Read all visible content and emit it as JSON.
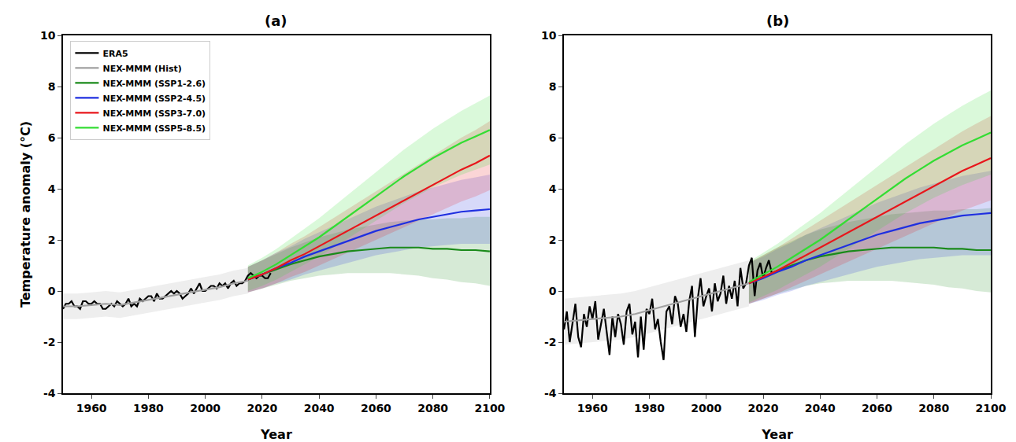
{
  "chart_data": [
    {
      "type": "line",
      "title": "(a)",
      "x_label": "Year",
      "y_label": "Temperature anomaly (°C)",
      "xlim": [
        1950,
        2100
      ],
      "xticks": [
        1960,
        1980,
        2000,
        2020,
        2040,
        2060,
        2080,
        2100
      ],
      "ylim": [
        -4,
        10
      ],
      "yticks": [
        -4,
        -2,
        0,
        2,
        4,
        6,
        8,
        10
      ],
      "legend": "upper left",
      "series": [
        {
          "name": "ERA5",
          "color": "#000000",
          "x": [
            1950,
            1951,
            1952,
            1953,
            1954,
            1955,
            1956,
            1957,
            1958,
            1959,
            1960,
            1961,
            1962,
            1963,
            1964,
            1965,
            1966,
            1967,
            1968,
            1969,
            1970,
            1971,
            1972,
            1973,
            1974,
            1975,
            1976,
            1977,
            1978,
            1979,
            1980,
            1981,
            1982,
            1983,
            1984,
            1985,
            1986,
            1987,
            1988,
            1989,
            1990,
            1991,
            1992,
            1993,
            1994,
            1995,
            1996,
            1997,
            1998,
            1999,
            2000,
            2001,
            2002,
            2003,
            2004,
            2005,
            2006,
            2007,
            2008,
            2009,
            2010,
            2011,
            2012,
            2013,
            2014,
            2015,
            2016,
            2017,
            2018,
            2019,
            2020,
            2021,
            2022,
            2023
          ],
          "values": [
            -0.7,
            -0.5,
            -0.5,
            -0.4,
            -0.6,
            -0.6,
            -0.7,
            -0.4,
            -0.4,
            -0.5,
            -0.5,
            -0.4,
            -0.5,
            -0.5,
            -0.7,
            -0.7,
            -0.6,
            -0.5,
            -0.6,
            -0.4,
            -0.5,
            -0.6,
            -0.5,
            -0.3,
            -0.6,
            -0.5,
            -0.6,
            -0.3,
            -0.4,
            -0.3,
            -0.2,
            -0.2,
            -0.4,
            -0.1,
            -0.3,
            -0.3,
            -0.2,
            -0.1,
            0.0,
            -0.1,
            0.0,
            -0.1,
            -0.3,
            -0.2,
            -0.1,
            0.1,
            -0.1,
            0.1,
            0.3,
            0.0,
            0.0,
            0.1,
            0.2,
            0.2,
            0.1,
            0.3,
            0.2,
            0.3,
            0.1,
            0.3,
            0.4,
            0.2,
            0.3,
            0.3,
            0.4,
            0.6,
            0.7,
            0.6,
            0.5,
            0.6,
            0.6,
            0.5,
            0.5,
            0.7
          ]
        },
        {
          "name": "NEX-MMM (Hist)",
          "color": "#a0a0a0",
          "x": [
            1950,
            1955,
            1960,
            1965,
            1970,
            1975,
            1980,
            1985,
            1990,
            1995,
            2000,
            2005,
            2010,
            2015
          ],
          "values": [
            -0.6,
            -0.6,
            -0.55,
            -0.5,
            -0.55,
            -0.45,
            -0.35,
            -0.25,
            -0.15,
            -0.05,
            0.05,
            0.15,
            0.3,
            0.4
          ],
          "spread": [
            0.5,
            0.5,
            0.5,
            0.5,
            0.5,
            0.5,
            0.5,
            0.5,
            0.5,
            0.5,
            0.5,
            0.5,
            0.5,
            0.5
          ]
        },
        {
          "name": "NEX-MMM (SSP1-2.6)",
          "color": "#1a8a1a",
          "x": [
            2015,
            2020,
            2025,
            2030,
            2035,
            2040,
            2045,
            2050,
            2055,
            2060,
            2065,
            2070,
            2075,
            2080,
            2085,
            2090,
            2095,
            2100
          ],
          "values": [
            0.45,
            0.65,
            0.85,
            1.05,
            1.2,
            1.35,
            1.45,
            1.55,
            1.6,
            1.65,
            1.7,
            1.7,
            1.7,
            1.65,
            1.65,
            1.6,
            1.6,
            1.55
          ],
          "spread": [
            0.5,
            0.55,
            0.6,
            0.65,
            0.7,
            0.75,
            0.8,
            0.85,
            0.9,
            0.95,
            1.0,
            1.05,
            1.1,
            1.15,
            1.2,
            1.25,
            1.3,
            1.35
          ]
        },
        {
          "name": "NEX-MMM (SSP2-4.5)",
          "color": "#1f2fe0",
          "x": [
            2015,
            2020,
            2025,
            2030,
            2035,
            2040,
            2045,
            2050,
            2055,
            2060,
            2065,
            2070,
            2075,
            2080,
            2085,
            2090,
            2095,
            2100
          ],
          "values": [
            0.45,
            0.65,
            0.9,
            1.1,
            1.35,
            1.55,
            1.75,
            1.95,
            2.15,
            2.35,
            2.5,
            2.65,
            2.8,
            2.9,
            3.0,
            3.1,
            3.15,
            3.2
          ],
          "spread": [
            0.5,
            0.55,
            0.6,
            0.65,
            0.7,
            0.75,
            0.8,
            0.85,
            0.9,
            0.95,
            1.0,
            1.05,
            1.1,
            1.15,
            1.2,
            1.25,
            1.3,
            1.35
          ]
        },
        {
          "name": "NEX-MMM (SSP3-7.0)",
          "color": "#e8161b",
          "x": [
            2015,
            2020,
            2025,
            2030,
            2035,
            2040,
            2045,
            2050,
            2055,
            2060,
            2065,
            2070,
            2075,
            2080,
            2085,
            2090,
            2095,
            2100
          ],
          "values": [
            0.45,
            0.65,
            0.9,
            1.2,
            1.45,
            1.75,
            2.05,
            2.35,
            2.65,
            2.95,
            3.25,
            3.55,
            3.85,
            4.15,
            4.45,
            4.75,
            5.0,
            5.3
          ],
          "spread": [
            0.5,
            0.55,
            0.6,
            0.65,
            0.7,
            0.75,
            0.8,
            0.85,
            0.9,
            0.95,
            1.0,
            1.05,
            1.1,
            1.15,
            1.2,
            1.25,
            1.3,
            1.35
          ]
        },
        {
          "name": "NEX-MMM (SSP5-8.5)",
          "color": "#33dd33",
          "x": [
            2015,
            2020,
            2025,
            2030,
            2035,
            2040,
            2045,
            2050,
            2055,
            2060,
            2065,
            2070,
            2075,
            2080,
            2085,
            2090,
            2095,
            2100
          ],
          "values": [
            0.5,
            0.75,
            1.05,
            1.4,
            1.75,
            2.1,
            2.5,
            2.9,
            3.3,
            3.7,
            4.1,
            4.5,
            4.85,
            5.2,
            5.5,
            5.8,
            6.05,
            6.3
          ],
          "spread": [
            0.5,
            0.55,
            0.6,
            0.65,
            0.7,
            0.75,
            0.8,
            0.85,
            0.9,
            0.95,
            1.0,
            1.05,
            1.1,
            1.15,
            1.2,
            1.25,
            1.3,
            1.35
          ]
        }
      ]
    },
    {
      "type": "line",
      "title": "(b)",
      "x_label": "Year",
      "xlim": [
        1950,
        2100
      ],
      "xticks": [
        1960,
        1980,
        2000,
        2020,
        2040,
        2060,
        2080,
        2100
      ],
      "ylim": [
        -4,
        10
      ],
      "yticks": [
        -4,
        -2,
        0,
        2,
        4,
        6,
        8,
        10
      ],
      "series": [
        {
          "name": "ERA5",
          "color": "#000000",
          "x": [
            1950,
            1951,
            1952,
            1953,
            1954,
            1955,
            1956,
            1957,
            1958,
            1959,
            1960,
            1961,
            1962,
            1963,
            1964,
            1965,
            1966,
            1967,
            1968,
            1969,
            1970,
            1971,
            1972,
            1973,
            1974,
            1975,
            1976,
            1977,
            1978,
            1979,
            1980,
            1981,
            1982,
            1983,
            1984,
            1985,
            1986,
            1987,
            1988,
            1989,
            1990,
            1991,
            1992,
            1993,
            1994,
            1995,
            1996,
            1997,
            1998,
            1999,
            2000,
            2001,
            2002,
            2003,
            2004,
            2005,
            2006,
            2007,
            2008,
            2009,
            2010,
            2011,
            2012,
            2013,
            2014,
            2015,
            2016,
            2017,
            2018,
            2019,
            2020,
            2021,
            2022,
            2023
          ],
          "values": [
            -1.5,
            -0.8,
            -2.0,
            -1.2,
            -0.5,
            -1.8,
            -2.2,
            -0.9,
            -1.4,
            -0.6,
            -1.1,
            -0.4,
            -1.9,
            -1.3,
            -0.7,
            -1.6,
            -2.5,
            -1.0,
            -1.8,
            -0.9,
            -1.3,
            -2.1,
            -0.8,
            -0.5,
            -1.7,
            -1.2,
            -2.6,
            -1.0,
            -2.3,
            -0.7,
            -0.9,
            -0.3,
            -1.5,
            -1.1,
            -2.0,
            -2.7,
            -0.8,
            -0.6,
            -1.3,
            -0.2,
            -0.5,
            -1.4,
            -0.9,
            -1.6,
            -0.4,
            0.2,
            -1.8,
            -0.3,
            0.5,
            -0.6,
            -0.2,
            0.1,
            -0.8,
            0.3,
            -0.4,
            -0.1,
            0.6,
            -0.5,
            0.2,
            -0.3,
            0.4,
            -0.6,
            0.9,
            0.1,
            0.3,
            1.0,
            1.3,
            -0.2,
            0.8,
            1.1,
            0.5,
            0.9,
            1.2,
            0.7
          ]
        },
        {
          "name": "NEX-MMM (Hist)",
          "color": "#a0a0a0",
          "x": [
            1950,
            1955,
            1960,
            1965,
            1970,
            1975,
            1980,
            1985,
            1990,
            1995,
            2000,
            2005,
            2010,
            2015
          ],
          "values": [
            -1.2,
            -1.15,
            -1.1,
            -1.05,
            -1.0,
            -0.9,
            -0.75,
            -0.6,
            -0.45,
            -0.3,
            -0.15,
            0.0,
            0.15,
            0.3
          ],
          "spread": [
            0.9,
            0.9,
            0.9,
            0.9,
            0.9,
            0.9,
            0.9,
            0.9,
            0.9,
            0.9,
            0.9,
            0.9,
            0.9,
            0.9
          ]
        },
        {
          "name": "NEX-MMM (SSP1-2.6)",
          "color": "#1a8a1a",
          "x": [
            2015,
            2020,
            2025,
            2030,
            2035,
            2040,
            2045,
            2050,
            2055,
            2060,
            2065,
            2070,
            2075,
            2080,
            2085,
            2090,
            2095,
            2100
          ],
          "values": [
            0.3,
            0.55,
            0.8,
            1.0,
            1.2,
            1.35,
            1.45,
            1.55,
            1.6,
            1.65,
            1.7,
            1.7,
            1.7,
            1.7,
            1.65,
            1.65,
            1.6,
            1.6
          ],
          "spread": [
            0.8,
            0.85,
            0.9,
            0.95,
            1.0,
            1.05,
            1.1,
            1.15,
            1.2,
            1.25,
            1.3,
            1.35,
            1.4,
            1.45,
            1.5,
            1.55,
            1.6,
            1.65
          ]
        },
        {
          "name": "NEX-MMM (SSP2-4.5)",
          "color": "#1f2fe0",
          "x": [
            2015,
            2020,
            2025,
            2030,
            2035,
            2040,
            2045,
            2050,
            2055,
            2060,
            2065,
            2070,
            2075,
            2080,
            2085,
            2090,
            2095,
            2100
          ],
          "values": [
            0.3,
            0.5,
            0.75,
            0.95,
            1.2,
            1.4,
            1.6,
            1.8,
            2.0,
            2.2,
            2.35,
            2.5,
            2.65,
            2.75,
            2.85,
            2.95,
            3.0,
            3.05
          ],
          "spread": [
            0.8,
            0.85,
            0.9,
            0.95,
            1.0,
            1.05,
            1.1,
            1.15,
            1.2,
            1.25,
            1.3,
            1.35,
            1.4,
            1.45,
            1.5,
            1.55,
            1.6,
            1.65
          ]
        },
        {
          "name": "NEX-MMM (SSP3-7.0)",
          "color": "#e8161b",
          "x": [
            2015,
            2020,
            2025,
            2030,
            2035,
            2040,
            2045,
            2050,
            2055,
            2060,
            2065,
            2070,
            2075,
            2080,
            2085,
            2090,
            2095,
            2100
          ],
          "values": [
            0.3,
            0.55,
            0.8,
            1.1,
            1.4,
            1.7,
            2.0,
            2.3,
            2.6,
            2.9,
            3.2,
            3.5,
            3.8,
            4.1,
            4.4,
            4.7,
            4.95,
            5.2
          ],
          "spread": [
            0.8,
            0.85,
            0.9,
            0.95,
            1.0,
            1.05,
            1.1,
            1.15,
            1.2,
            1.25,
            1.3,
            1.35,
            1.4,
            1.45,
            1.5,
            1.55,
            1.6,
            1.65
          ]
        },
        {
          "name": "NEX-MMM (SSP5-8.5)",
          "color": "#33dd33",
          "x": [
            2015,
            2020,
            2025,
            2030,
            2035,
            2040,
            2045,
            2050,
            2055,
            2060,
            2065,
            2070,
            2075,
            2080,
            2085,
            2090,
            2095,
            2100
          ],
          "values": [
            0.35,
            0.65,
            0.95,
            1.3,
            1.65,
            2.0,
            2.4,
            2.8,
            3.2,
            3.6,
            4.0,
            4.4,
            4.75,
            5.1,
            5.4,
            5.7,
            5.95,
            6.2
          ],
          "spread": [
            0.8,
            0.85,
            0.9,
            0.95,
            1.0,
            1.05,
            1.1,
            1.15,
            1.2,
            1.25,
            1.3,
            1.35,
            1.4,
            1.45,
            1.5,
            1.55,
            1.6,
            1.65
          ]
        }
      ]
    }
  ]
}
